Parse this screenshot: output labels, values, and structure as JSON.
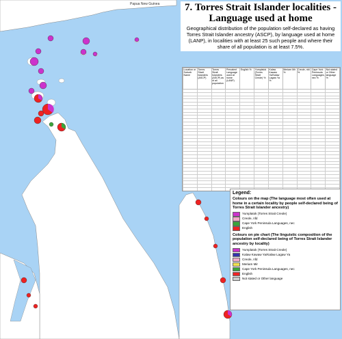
{
  "title": "7. Torres Strait Islander localities - Language used at home",
  "subtitle": "Geographical distribution of the population self-declared as having Torres Strait Islander ancestry (ASCP), by language used at home (LANP), in localities with at least 25 such people and where their share of all population is at least 7.5%.",
  "map": {
    "label_png": "Papua New Guinea",
    "colors": {
      "sea": "#a9d3f5",
      "land": "#ffffff",
      "yumplatok": "#cc33cc",
      "kalaw": "#3333aa",
      "creole": "#f4a9c9",
      "meriam": "#f0e050",
      "cape_york": "#3aa53a",
      "english": "#ee2222",
      "not_stated": "#cccccc"
    }
  },
  "table": {
    "headers": [
      "Location or Suburb Name",
      "Torres Strait Islanders (ASCP)",
      "Torres Strait Islanders (ASCP) as of all population",
      "Prevalent Language used at home (LANP)",
      "English %",
      "Yumplatok (Torres Strait Creole) %",
      "Kalaw Kawaw Ya/Kalaw Lagaw Ya %",
      "Meriam Mir %",
      "Creole, nfd %",
      "Cape York Peninsula Languages, nec %",
      "Not stated or Other language %"
    ]
  },
  "legend": {
    "title": "Legend:",
    "map_colors_title": "Colours on the map (The language most often used at home in a certain locality by people self-declared being of Torres Strait Islander ancestry)",
    "map_colors": [
      {
        "label": "Yumplatok (Torres Strait Creole)",
        "color": "#cc33cc"
      },
      {
        "label": "Creole, nfd",
        "color": "#f4a9c9"
      },
      {
        "label": "Cape York Peninsula Languages, nec",
        "color": "#3aa53a"
      },
      {
        "label": "English",
        "color": "#ee2222"
      }
    ],
    "pie_colors_title": "Colours on pie chart (The linguistic composition of the population self-declared being of Torres Strait Islander ancestry by locality)",
    "pie_colors": [
      {
        "label": "Yumplatok (Torres Strait Creole)",
        "color": "#cc33cc"
      },
      {
        "label": "Kalaw Kawaw Ya/Kalaw Lagaw Ya",
        "color": "#3333aa"
      },
      {
        "label": "Creole, nfd",
        "color": "#f4a9c9"
      },
      {
        "label": "Meriam Mir",
        "color": "#f0e050"
      },
      {
        "label": "Cape York Peninsula Languages, nec",
        "color": "#3aa53a"
      },
      {
        "label": "English",
        "color": "#ee2222"
      },
      {
        "label": "Not stated or Other language",
        "color": "#cccccc"
      }
    ]
  }
}
